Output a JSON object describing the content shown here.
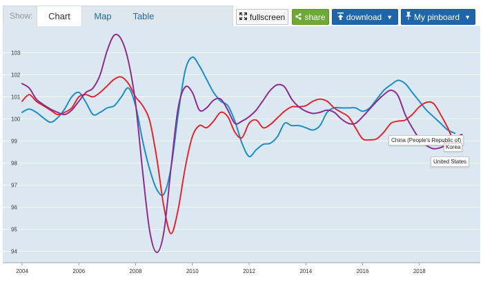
{
  "toolbar": {
    "show_label": "Show:",
    "tabs": [
      {
        "label": "Chart",
        "active": true
      },
      {
        "label": "Map",
        "active": false
      },
      {
        "label": "Table",
        "active": false
      }
    ],
    "fullscreen_label": "fullscreen",
    "share_label": "share",
    "download_label": "download",
    "pinboard_label": "My pinboard",
    "colors": {
      "share": "#6ea935",
      "download": "#1d66ac",
      "pinboard": "#1d66ac",
      "plot_background": "#dbe8f1"
    }
  },
  "chart_data": {
    "type": "line",
    "title": "",
    "xlabel": "",
    "ylabel": "",
    "xlim": [
      2004,
      2020
    ],
    "ylim": [
      93.5,
      104
    ],
    "y_ticks": [
      94,
      95,
      96,
      97,
      98,
      99,
      100,
      101,
      102,
      103
    ],
    "x_ticks": [
      2004,
      2006,
      2008,
      2010,
      2012,
      2014,
      2016,
      2018
    ],
    "grid": true,
    "legend": "none",
    "series": [
      {
        "name": "China (People's Republic of)",
        "color": "#1a8cc8",
        "x": [
          2004.0,
          2004.25,
          2004.5,
          2004.75,
          2005.0,
          2005.25,
          2005.5,
          2005.75,
          2006.0,
          2006.25,
          2006.5,
          2006.75,
          2007.0,
          2007.25,
          2007.5,
          2007.75,
          2008.0,
          2008.25,
          2008.5,
          2008.75,
          2009.0,
          2009.25,
          2009.5,
          2009.75,
          2010.0,
          2010.25,
          2010.5,
          2010.75,
          2011.0,
          2011.25,
          2011.5,
          2011.75,
          2012.0,
          2012.25,
          2012.5,
          2012.75,
          2013.0,
          2013.25,
          2013.5,
          2013.75,
          2014.0,
          2014.25,
          2014.5,
          2014.75,
          2015.0,
          2015.25,
          2015.5,
          2015.75,
          2016.0,
          2016.25,
          2016.5,
          2016.75,
          2017.0,
          2017.25,
          2017.5,
          2017.75,
          2018.0,
          2018.25,
          2018.5,
          2018.75,
          2019.0,
          2019.25
        ],
        "y": [
          100.3,
          100.45,
          100.3,
          100.05,
          99.85,
          100.05,
          100.45,
          101.0,
          101.2,
          100.75,
          100.2,
          100.3,
          100.5,
          100.6,
          101.0,
          101.4,
          100.6,
          99.0,
          97.7,
          96.8,
          96.6,
          97.8,
          100.2,
          102.2,
          102.8,
          102.4,
          101.8,
          101.2,
          100.8,
          100.6,
          99.9,
          98.9,
          98.3,
          98.6,
          98.85,
          98.9,
          99.2,
          99.8,
          99.7,
          99.7,
          99.6,
          99.5,
          99.7,
          100.3,
          100.5,
          100.5,
          100.5,
          100.5,
          100.35,
          100.5,
          100.9,
          101.3,
          101.55,
          101.75,
          101.6,
          101.2,
          100.8,
          100.4,
          100.1,
          99.8,
          99.5,
          99.35
        ]
      },
      {
        "name": "Korea",
        "color": "#e1252d",
        "x": [
          2004.0,
          2004.25,
          2004.5,
          2004.75,
          2005.0,
          2005.25,
          2005.5,
          2005.75,
          2006.0,
          2006.25,
          2006.5,
          2006.75,
          2007.0,
          2007.25,
          2007.5,
          2007.75,
          2008.0,
          2008.25,
          2008.5,
          2008.75,
          2009.0,
          2009.25,
          2009.5,
          2009.75,
          2010.0,
          2010.25,
          2010.5,
          2010.75,
          2011.0,
          2011.25,
          2011.5,
          2011.75,
          2012.0,
          2012.25,
          2012.5,
          2012.75,
          2013.0,
          2013.25,
          2013.5,
          2013.75,
          2014.0,
          2014.25,
          2014.5,
          2014.75,
          2015.0,
          2015.25,
          2015.5,
          2015.75,
          2016.0,
          2016.25,
          2016.5,
          2016.75,
          2017.0,
          2017.25,
          2017.5,
          2017.75,
          2018.0,
          2018.25,
          2018.5,
          2018.75,
          2019.0,
          2019.25,
          2019.5
        ],
        "y": [
          100.8,
          101.1,
          100.8,
          100.6,
          100.4,
          100.2,
          100.3,
          100.5,
          101.0,
          101.1,
          101.0,
          101.2,
          101.5,
          101.8,
          101.9,
          101.6,
          101.0,
          100.6,
          99.9,
          98.2,
          96.0,
          94.8,
          95.9,
          97.8,
          99.2,
          99.7,
          99.6,
          99.9,
          100.3,
          100.1,
          99.4,
          99.15,
          99.8,
          99.95,
          99.6,
          99.75,
          100.05,
          100.35,
          100.55,
          100.55,
          100.6,
          100.8,
          100.9,
          100.8,
          100.5,
          100.3,
          100.1,
          99.6,
          99.1,
          99.05,
          99.1,
          99.4,
          99.8,
          99.9,
          99.95,
          100.2,
          100.55,
          100.75,
          100.7,
          100.2,
          99.6,
          98.9,
          98.8
        ]
      },
      {
        "name": "United States",
        "color": "#8b2a8f",
        "x": [
          2004.0,
          2004.25,
          2004.5,
          2004.75,
          2005.0,
          2005.25,
          2005.5,
          2005.75,
          2006.0,
          2006.25,
          2006.5,
          2006.75,
          2007.0,
          2007.25,
          2007.5,
          2007.75,
          2008.0,
          2008.25,
          2008.5,
          2008.75,
          2009.0,
          2009.25,
          2009.5,
          2009.75,
          2010.0,
          2010.25,
          2010.5,
          2010.75,
          2011.0,
          2011.25,
          2011.5,
          2011.75,
          2012.0,
          2012.25,
          2012.5,
          2012.75,
          2013.0,
          2013.25,
          2013.5,
          2013.75,
          2014.0,
          2014.25,
          2014.5,
          2014.75,
          2015.0,
          2015.25,
          2015.5,
          2015.75,
          2016.0,
          2016.25,
          2016.5,
          2016.75,
          2017.0,
          2017.25,
          2017.5,
          2017.75,
          2018.0,
          2018.25,
          2018.5,
          2018.75,
          2019.0,
          2019.25,
          2019.5
        ],
        "y": [
          101.6,
          101.4,
          100.9,
          100.65,
          100.45,
          100.3,
          100.2,
          100.4,
          100.8,
          101.2,
          101.4,
          102.0,
          103.1,
          103.8,
          103.6,
          102.6,
          100.7,
          97.6,
          94.9,
          93.95,
          94.9,
          97.8,
          100.5,
          101.45,
          101.2,
          100.4,
          100.5,
          100.85,
          100.9,
          100.4,
          99.8,
          99.9,
          100.1,
          100.4,
          100.85,
          101.3,
          101.55,
          101.45,
          100.9,
          100.55,
          100.35,
          100.25,
          100.3,
          100.4,
          100.3,
          100.0,
          99.8,
          99.8,
          100.1,
          100.45,
          100.8,
          101.1,
          101.3,
          101.05,
          100.2,
          99.6,
          99.1,
          98.8,
          98.65,
          98.7,
          98.85,
          99.1,
          99.3
        ]
      }
    ],
    "tooltips": [
      "China (People's Republic of)",
      "Korea",
      "United States"
    ]
  }
}
